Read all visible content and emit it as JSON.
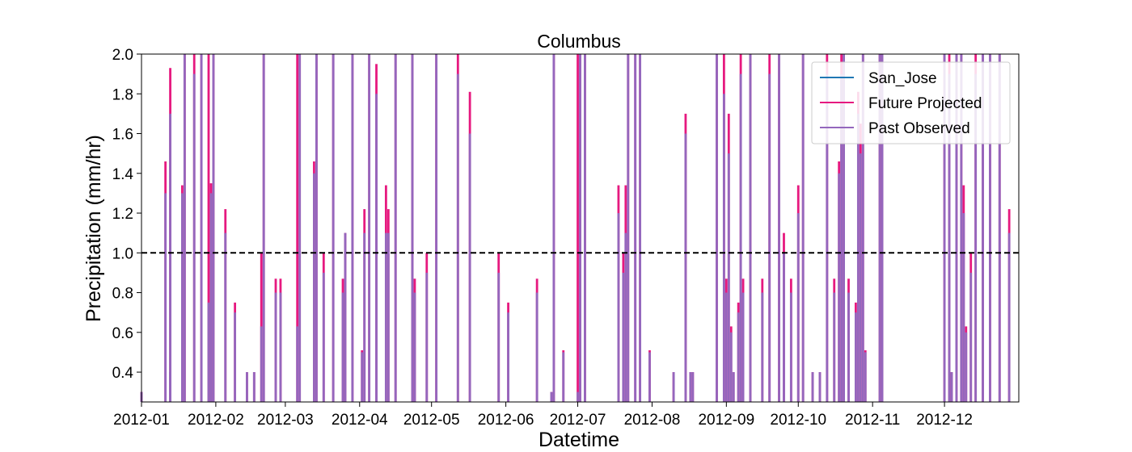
{
  "chart_data": {
    "type": "line",
    "title": "Columbus",
    "xlabel": "Datetime",
    "ylabel": "Precipitation (mm/hr)",
    "ylim": [
      0.25,
      2.0
    ],
    "xlim": [
      "2012-01-01",
      "2013-01-01"
    ],
    "x_ticks": [
      "2012-01-01",
      "2012-02-01",
      "2012-03-01",
      "2012-04-01",
      "2012-05-01",
      "2012-06-01",
      "2012-07-01",
      "2012-08-01",
      "2012-09-01",
      "2012-10-01",
      "2012-11-01",
      "2012-12-01"
    ],
    "x_tick_labels": [
      "2012-01",
      "2012-02",
      "2012-03",
      "2012-04",
      "2012-05",
      "2012-06",
      "2012-07",
      "2012-08",
      "2012-09",
      "2012-10",
      "2012-11",
      "2012-12"
    ],
    "y_ticks": [
      0.4,
      0.6,
      0.8,
      1.0,
      1.2,
      1.4,
      1.6,
      1.8,
      2.0
    ],
    "y_tick_labels": [
      "0.4",
      "0.6",
      "0.8",
      "1.0",
      "1.2",
      "1.4",
      "1.6",
      "1.8",
      "2.0"
    ],
    "threshold": {
      "value": 1.0,
      "style": "dashed",
      "color": "#000000"
    },
    "legend": {
      "position": "upper right",
      "entries": [
        "San_Jose",
        "Future Projected",
        "Past Observed"
      ]
    },
    "grid": false,
    "series": [
      {
        "name": "San_Jose",
        "color": "#1f77b4",
        "points": []
      },
      {
        "name": "Future Projected",
        "color": "#e6197f",
        "points": [
          [
            "2012-01-01",
            0.3
          ],
          [
            "2012-01-11",
            1.46
          ],
          [
            "2012-01-13",
            1.93
          ],
          [
            "2012-01-13",
            0.4
          ],
          [
            "2012-01-18",
            1.34
          ],
          [
            "2012-01-19",
            2.0
          ],
          [
            "2012-01-23",
            2.0
          ],
          [
            "2012-01-26",
            2.0
          ],
          [
            "2012-01-29",
            2.0
          ],
          [
            "2012-01-30",
            1.35
          ],
          [
            "2012-01-31",
            2.0
          ],
          [
            "2012-02-05",
            1.22
          ],
          [
            "2012-02-09",
            0.75
          ],
          [
            "2012-02-14",
            0.4
          ],
          [
            "2012-02-17",
            0.4
          ],
          [
            "2012-02-20",
            1.0
          ],
          [
            "2012-02-21",
            2.0
          ],
          [
            "2012-02-26",
            0.87
          ],
          [
            "2012-02-28",
            0.87
          ],
          [
            "2012-03-06",
            2.0
          ],
          [
            "2012-03-07",
            2.0
          ],
          [
            "2012-03-13",
            1.46
          ],
          [
            "2012-03-14",
            2.0
          ],
          [
            "2012-03-17",
            1.0
          ],
          [
            "2012-03-21",
            2.0
          ],
          [
            "2012-03-25",
            0.87
          ],
          [
            "2012-03-26",
            1.1
          ],
          [
            "2012-03-29",
            2.0
          ],
          [
            "2012-04-02",
            0.51
          ],
          [
            "2012-04-03",
            1.22
          ],
          [
            "2012-04-05",
            2.0
          ],
          [
            "2012-04-08",
            1.95
          ],
          [
            "2012-04-12",
            1.34
          ],
          [
            "2012-04-13",
            1.22
          ],
          [
            "2012-04-16",
            2.0
          ],
          [
            "2012-04-23",
            2.0
          ],
          [
            "2012-04-24",
            0.87
          ],
          [
            "2012-04-29",
            1.0
          ],
          [
            "2012-05-03",
            2.0
          ],
          [
            "2012-05-12",
            2.0
          ],
          [
            "2012-05-17",
            1.81
          ],
          [
            "2012-05-29",
            1.0
          ],
          [
            "2012-06-02",
            0.75
          ],
          [
            "2012-06-14",
            0.87
          ],
          [
            "2012-06-20",
            0.3
          ],
          [
            "2012-06-21",
            2.0
          ],
          [
            "2012-06-25",
            0.51
          ],
          [
            "2012-07-01",
            2.0
          ],
          [
            "2012-07-02",
            2.0
          ],
          [
            "2012-07-04",
            2.0
          ],
          [
            "2012-07-18",
            1.34
          ],
          [
            "2012-07-20",
            1.0
          ],
          [
            "2012-07-21",
            1.34
          ],
          [
            "2012-07-22",
            2.0
          ],
          [
            "2012-07-25",
            2.0
          ],
          [
            "2012-07-27",
            2.0
          ],
          [
            "2012-07-31",
            0.51
          ],
          [
            "2012-08-10",
            0.4
          ],
          [
            "2012-08-15",
            1.7
          ],
          [
            "2012-08-17",
            0.4
          ],
          [
            "2012-08-18",
            0.4
          ],
          [
            "2012-08-28",
            2.0
          ],
          [
            "2012-08-31",
            2.0
          ],
          [
            "2012-09-01",
            0.87
          ],
          [
            "2012-09-02",
            1.7
          ],
          [
            "2012-09-03",
            0.63
          ],
          [
            "2012-09-04",
            0.4
          ],
          [
            "2012-09-06",
            0.75
          ],
          [
            "2012-09-07",
            2.0
          ],
          [
            "2012-09-08",
            0.87
          ],
          [
            "2012-09-11",
            2.0
          ],
          [
            "2012-09-16",
            0.87
          ],
          [
            "2012-09-19",
            2.0
          ],
          [
            "2012-09-23",
            2.0
          ],
          [
            "2012-09-25",
            1.1
          ],
          [
            "2012-09-28",
            0.87
          ],
          [
            "2012-10-01",
            1.34
          ],
          [
            "2012-10-03",
            2.0
          ],
          [
            "2012-10-07",
            0.4
          ],
          [
            "2012-10-10",
            0.4
          ],
          [
            "2012-10-13",
            2.0
          ],
          [
            "2012-10-16",
            0.87
          ],
          [
            "2012-10-18",
            1.46
          ],
          [
            "2012-10-19",
            2.0
          ],
          [
            "2012-10-20",
            2.0
          ],
          [
            "2012-10-22",
            0.87
          ],
          [
            "2012-10-25",
            0.75
          ],
          [
            "2012-10-26",
            1.81
          ],
          [
            "2012-10-27",
            1.65
          ],
          [
            "2012-10-28",
            2.0
          ],
          [
            "2012-10-29",
            0.51
          ],
          [
            "2012-11-04",
            2.0
          ],
          [
            "2012-11-05",
            2.0
          ],
          [
            "2012-12-01",
            2.0
          ],
          [
            "2012-12-03",
            2.0
          ],
          [
            "2012-12-04",
            0.4
          ],
          [
            "2012-12-06",
            2.0
          ],
          [
            "2012-12-08",
            2.0
          ],
          [
            "2012-12-09",
            1.34
          ],
          [
            "2012-12-10",
            0.63
          ],
          [
            "2012-12-12",
            1.0
          ],
          [
            "2012-12-14",
            2.0
          ],
          [
            "2012-12-17",
            2.0
          ],
          [
            "2012-12-20",
            2.0
          ],
          [
            "2012-12-24",
            2.0
          ],
          [
            "2012-12-28",
            1.22
          ]
        ]
      },
      {
        "name": "Past Observed",
        "color": "#9467bd",
        "points": [
          [
            "2012-01-01",
            0.3
          ],
          [
            "2012-01-11",
            1.3
          ],
          [
            "2012-01-13",
            1.7
          ],
          [
            "2012-01-13",
            0.4
          ],
          [
            "2012-01-18",
            1.3
          ],
          [
            "2012-01-19",
            2.0
          ],
          [
            "2012-01-23",
            1.9
          ],
          [
            "2012-01-26",
            2.0
          ],
          [
            "2012-01-29",
            0.75
          ],
          [
            "2012-01-30",
            1.3
          ],
          [
            "2012-01-31",
            2.0
          ],
          [
            "2012-02-05",
            1.1
          ],
          [
            "2012-02-09",
            0.7
          ],
          [
            "2012-02-14",
            0.4
          ],
          [
            "2012-02-17",
            0.4
          ],
          [
            "2012-02-20",
            0.63
          ],
          [
            "2012-02-21",
            2.0
          ],
          [
            "2012-02-26",
            0.8
          ],
          [
            "2012-02-28",
            0.8
          ],
          [
            "2012-03-06",
            0.63
          ],
          [
            "2012-03-07",
            2.0
          ],
          [
            "2012-03-13",
            1.4
          ],
          [
            "2012-03-14",
            2.0
          ],
          [
            "2012-03-17",
            0.9
          ],
          [
            "2012-03-21",
            2.0
          ],
          [
            "2012-03-25",
            0.8
          ],
          [
            "2012-03-26",
            1.1
          ],
          [
            "2012-03-29",
            2.0
          ],
          [
            "2012-04-02",
            0.5
          ],
          [
            "2012-04-03",
            1.1
          ],
          [
            "2012-04-05",
            2.0
          ],
          [
            "2012-04-08",
            1.8
          ],
          [
            "2012-04-12",
            1.1
          ],
          [
            "2012-04-13",
            1.1
          ],
          [
            "2012-04-16",
            2.0
          ],
          [
            "2012-04-23",
            2.0
          ],
          [
            "2012-04-24",
            0.8
          ],
          [
            "2012-04-29",
            0.9
          ],
          [
            "2012-05-03",
            2.0
          ],
          [
            "2012-05-12",
            1.9
          ],
          [
            "2012-05-17",
            1.6
          ],
          [
            "2012-05-29",
            0.9
          ],
          [
            "2012-06-02",
            0.7
          ],
          [
            "2012-06-14",
            0.8
          ],
          [
            "2012-06-20",
            0.3
          ],
          [
            "2012-06-21",
            2.0
          ],
          [
            "2012-06-25",
            0.5
          ],
          [
            "2012-07-01",
            0.3
          ],
          [
            "2012-07-02",
            2.0
          ],
          [
            "2012-07-04",
            2.0
          ],
          [
            "2012-07-18",
            1.2
          ],
          [
            "2012-07-20",
            0.9
          ],
          [
            "2012-07-21",
            1.1
          ],
          [
            "2012-07-22",
            2.0
          ],
          [
            "2012-07-25",
            2.0
          ],
          [
            "2012-07-27",
            2.0
          ],
          [
            "2012-07-31",
            0.5
          ],
          [
            "2012-08-10",
            0.4
          ],
          [
            "2012-08-15",
            1.6
          ],
          [
            "2012-08-17",
            0.4
          ],
          [
            "2012-08-18",
            0.4
          ],
          [
            "2012-08-28",
            2.0
          ],
          [
            "2012-08-31",
            1.8
          ],
          [
            "2012-09-01",
            0.8
          ],
          [
            "2012-09-02",
            1.5
          ],
          [
            "2012-09-03",
            0.6
          ],
          [
            "2012-09-04",
            0.4
          ],
          [
            "2012-09-06",
            0.7
          ],
          [
            "2012-09-07",
            1.9
          ],
          [
            "2012-09-08",
            0.8
          ],
          [
            "2012-09-11",
            2.0
          ],
          [
            "2012-09-16",
            0.8
          ],
          [
            "2012-09-19",
            1.9
          ],
          [
            "2012-09-23",
            2.0
          ],
          [
            "2012-09-25",
            1.0
          ],
          [
            "2012-09-28",
            0.8
          ],
          [
            "2012-10-01",
            1.2
          ],
          [
            "2012-10-03",
            2.0
          ],
          [
            "2012-10-07",
            0.4
          ],
          [
            "2012-10-10",
            0.4
          ],
          [
            "2012-10-13",
            1.9
          ],
          [
            "2012-10-16",
            0.8
          ],
          [
            "2012-10-18",
            1.4
          ],
          [
            "2012-10-19",
            1.9
          ],
          [
            "2012-10-20",
            2.0
          ],
          [
            "2012-10-22",
            0.8
          ],
          [
            "2012-10-25",
            0.7
          ],
          [
            "2012-10-26",
            1.7
          ],
          [
            "2012-10-27",
            1.5
          ],
          [
            "2012-10-28",
            2.0
          ],
          [
            "2012-10-29",
            0.5
          ],
          [
            "2012-11-04",
            2.0
          ],
          [
            "2012-11-05",
            2.0
          ],
          [
            "2012-12-01",
            2.0
          ],
          [
            "2012-12-03",
            1.9
          ],
          [
            "2012-12-04",
            0.4
          ],
          [
            "2012-12-06",
            2.0
          ],
          [
            "2012-12-08",
            2.0
          ],
          [
            "2012-12-09",
            1.2
          ],
          [
            "2012-12-10",
            0.6
          ],
          [
            "2012-12-12",
            0.9
          ],
          [
            "2012-12-14",
            1.9
          ],
          [
            "2012-12-17",
            2.0
          ],
          [
            "2012-12-20",
            2.0
          ],
          [
            "2012-12-24",
            2.0
          ],
          [
            "2012-12-28",
            1.1
          ]
        ]
      }
    ]
  }
}
